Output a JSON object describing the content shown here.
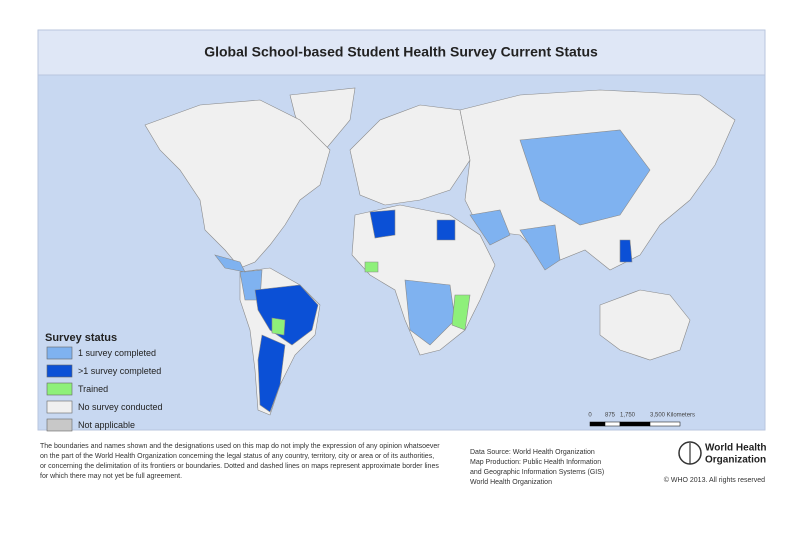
{
  "header": {
    "title": "Global School-based Student Health Survey Current Status"
  },
  "legend": {
    "title": "Survey status",
    "items": [
      {
        "label": "1 survey completed",
        "color": "#7fb2f0"
      },
      {
        "label": ">1 survey completed",
        "color": "#0b50d6"
      },
      {
        "label": "Trained",
        "color": "#8ef07a"
      },
      {
        "label": "No survey conducted",
        "color": "#f0f0f0"
      },
      {
        "label": "Not applicable",
        "color": "#c8c8c8"
      }
    ]
  },
  "scale_bar": {
    "labels": [
      "0",
      "875",
      "1,750",
      "3,500 Kilometers"
    ]
  },
  "disclaimer": [
    "The boundaries and names shown and the designations used on this map do not imply the expression of any opinion whatsoever",
    "on the part of the World Health Organization concerning the legal status of any country, territory, city or area or of its authorities,",
    "or concerning the delimitation of its frontiers or boundaries. Dotted and dashed lines on maps represent approximate border lines",
    "for which there may not yet be full agreement."
  ],
  "data_source": [
    "Data Source: World Health Organization",
    "Map Production: Public Health Information",
    "and Geographic Information Systems (GIS)",
    "World Health Organization"
  ],
  "logo": {
    "lines": [
      "World Health",
      "Organization"
    ]
  },
  "copyright": "© WHO 2013. All rights reserved"
}
